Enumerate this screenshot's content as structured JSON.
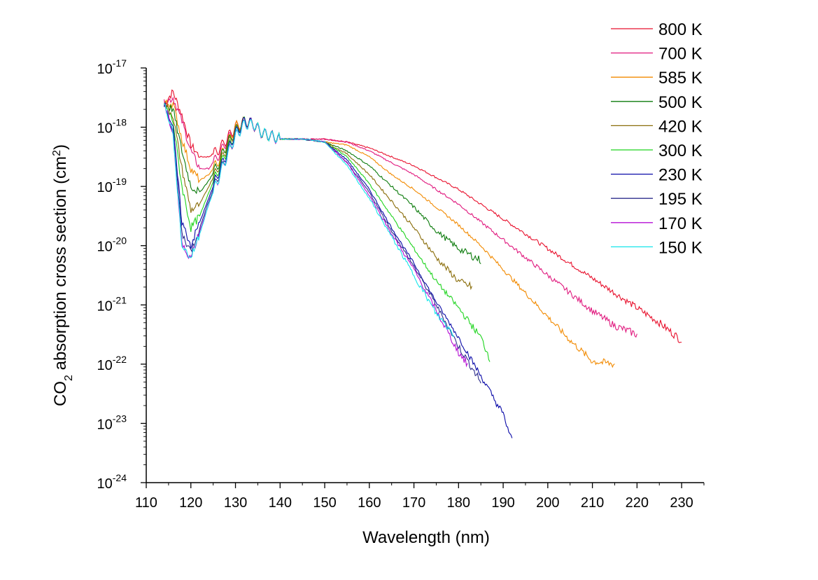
{
  "chart_data": {
    "type": "line",
    "title": "",
    "xlabel": "Wavelength (nm)",
    "ylabel": {
      "prefix": "CO",
      "sub": "2",
      "middle": " absorption cross section (cm",
      "sup": "2",
      "suffix": ")"
    },
    "xlim": [
      110,
      235
    ],
    "ylim_log10": [
      -24,
      -17
    ],
    "y_scale": "log",
    "x_ticks": [
      110,
      120,
      130,
      140,
      150,
      160,
      170,
      180,
      190,
      200,
      210,
      220,
      230
    ],
    "y_ticks": [
      {
        "base": "10",
        "exp": "-17",
        "log10": -17
      },
      {
        "base": "10",
        "exp": "-18",
        "log10": -18
      },
      {
        "base": "10",
        "exp": "-19",
        "log10": -19
      },
      {
        "base": "10",
        "exp": "-20",
        "log10": -20
      },
      {
        "base": "10",
        "exp": "-21",
        "log10": -21
      },
      {
        "base": "10",
        "exp": "-22",
        "log10": -22
      },
      {
        "base": "10",
        "exp": "-23",
        "log10": -23
      },
      {
        "base": "10",
        "exp": "-24",
        "log10": -24
      }
    ],
    "grid": false,
    "legend_position": "top-right",
    "series": [
      {
        "name": "800 K",
        "color": "#e8112d",
        "x": [
          114,
          116,
          118,
          120,
          122,
          124,
          126,
          128,
          130,
          132,
          134,
          136,
          140,
          145,
          150,
          155,
          160,
          165,
          170,
          175,
          180,
          185,
          190,
          195,
          200,
          205,
          210,
          215,
          220,
          225,
          230
        ],
        "log10": [
          -17.6,
          -17.4,
          -17.8,
          -18.3,
          -18.5,
          -18.5,
          -18.4,
          -18.2,
          -18.0,
          -17.9,
          -17.95,
          -18.1,
          -18.2,
          -18.2,
          -18.2,
          -18.25,
          -18.35,
          -18.5,
          -18.65,
          -18.85,
          -19.05,
          -19.3,
          -19.55,
          -19.8,
          -20.05,
          -20.3,
          -20.55,
          -20.8,
          -21.05,
          -21.3,
          -21.6
        ]
      },
      {
        "name": "700 K",
        "color": "#e0197e",
        "x": [
          114,
          116,
          118,
          120,
          122,
          124,
          126,
          128,
          130,
          132,
          134,
          136,
          140,
          145,
          150,
          155,
          160,
          165,
          170,
          175,
          180,
          185,
          190,
          195,
          200,
          205,
          210,
          215,
          220
        ],
        "log10": [
          -17.6,
          -17.5,
          -17.9,
          -18.4,
          -18.7,
          -18.7,
          -18.5,
          -18.25,
          -18.0,
          -17.9,
          -17.95,
          -18.1,
          -18.2,
          -18.2,
          -18.2,
          -18.25,
          -18.4,
          -18.6,
          -18.8,
          -19.05,
          -19.3,
          -19.6,
          -19.9,
          -20.2,
          -20.5,
          -20.8,
          -21.1,
          -21.35,
          -21.5
        ]
      },
      {
        "name": "585 K",
        "color": "#f28a00",
        "x": [
          114,
          116,
          118,
          120,
          122,
          124,
          126,
          128,
          130,
          132,
          134,
          136,
          140,
          145,
          150,
          155,
          160,
          165,
          170,
          175,
          180,
          185,
          190,
          195,
          200,
          205,
          210,
          215
        ],
        "log10": [
          -17.6,
          -17.6,
          -18.2,
          -18.7,
          -18.9,
          -18.8,
          -18.6,
          -18.3,
          -18.0,
          -17.9,
          -17.95,
          -18.1,
          -18.2,
          -18.2,
          -18.25,
          -18.3,
          -18.5,
          -18.8,
          -19.05,
          -19.35,
          -19.65,
          -20.0,
          -20.4,
          -20.8,
          -21.2,
          -21.6,
          -21.95,
          -22.0
        ]
      },
      {
        "name": "500 K",
        "color": "#0c7b0c",
        "x": [
          114,
          116,
          118,
          120,
          122,
          124,
          126,
          128,
          130,
          132,
          134,
          136,
          140,
          145,
          150,
          155,
          160,
          165,
          170,
          175,
          180,
          185
        ],
        "log10": [
          -17.6,
          -17.7,
          -18.4,
          -19.0,
          -19.1,
          -18.9,
          -18.65,
          -18.3,
          -18.05,
          -17.9,
          -17.95,
          -18.1,
          -18.2,
          -18.2,
          -18.25,
          -18.4,
          -18.65,
          -19.0,
          -19.35,
          -19.75,
          -20.05,
          -20.25
        ]
      },
      {
        "name": "420 K",
        "color": "#8a6d0a",
        "x": [
          114,
          116,
          118,
          120,
          122,
          124,
          126,
          128,
          130,
          132,
          134,
          136,
          140,
          145,
          150,
          155,
          160,
          165,
          170,
          175,
          180,
          183
        ],
        "log10": [
          -17.6,
          -17.8,
          -18.7,
          -19.4,
          -19.3,
          -19.0,
          -18.7,
          -18.35,
          -18.05,
          -17.9,
          -17.95,
          -18.1,
          -18.2,
          -18.2,
          -18.25,
          -18.45,
          -18.8,
          -19.25,
          -19.7,
          -20.2,
          -20.6,
          -20.7
        ]
      },
      {
        "name": "300 K",
        "color": "#1ed41e",
        "x": [
          114,
          116,
          118,
          120,
          122,
          124,
          126,
          128,
          130,
          132,
          134,
          136,
          140,
          145,
          150,
          155,
          160,
          165,
          170,
          175,
          180,
          185,
          187
        ],
        "log10": [
          -17.6,
          -17.9,
          -19.0,
          -19.7,
          -19.5,
          -19.1,
          -18.75,
          -18.4,
          -18.1,
          -17.9,
          -17.95,
          -18.1,
          -18.2,
          -18.2,
          -18.25,
          -18.5,
          -18.95,
          -19.5,
          -20.05,
          -20.6,
          -21.05,
          -21.55,
          -21.9
        ]
      },
      {
        "name": "230 K",
        "color": "#0a0aa8",
        "x": [
          114,
          116,
          118,
          120,
          122,
          124,
          126,
          128,
          130,
          132,
          134,
          136,
          140,
          145,
          150,
          155,
          160,
          165,
          170,
          175,
          180,
          185,
          190,
          192
        ],
        "log10": [
          -17.6,
          -18.0,
          -19.6,
          -20.0,
          -19.6,
          -19.2,
          -18.8,
          -18.45,
          -18.1,
          -17.9,
          -17.95,
          -18.1,
          -18.2,
          -18.2,
          -18.25,
          -18.55,
          -19.05,
          -19.7,
          -20.3,
          -20.95,
          -21.55,
          -22.2,
          -22.85,
          -23.3
        ]
      },
      {
        "name": "195 K",
        "color": "#2e2e8c",
        "x": [
          114,
          116,
          118,
          120,
          122,
          124,
          126,
          128,
          130,
          132,
          134,
          136,
          140,
          145,
          150,
          155,
          160,
          165,
          170,
          175,
          180,
          185
        ],
        "log10": [
          -17.6,
          -18.05,
          -19.8,
          -20.1,
          -19.7,
          -19.25,
          -18.85,
          -18.5,
          -18.15,
          -17.95,
          -17.95,
          -18.1,
          -18.2,
          -18.2,
          -18.25,
          -18.6,
          -19.1,
          -19.75,
          -20.35,
          -21.0,
          -21.7,
          -22.3
        ]
      },
      {
        "name": "170 K",
        "color": "#b40fd4",
        "x": [
          114,
          116,
          118,
          120,
          122,
          124,
          126,
          128,
          130,
          132,
          134,
          136,
          140,
          145,
          150,
          155,
          160,
          165,
          170,
          175,
          180,
          182
        ],
        "log10": [
          -17.6,
          -18.1,
          -20.0,
          -20.2,
          -19.75,
          -19.3,
          -18.9,
          -18.5,
          -18.15,
          -17.95,
          -17.95,
          -18.1,
          -18.2,
          -18.2,
          -18.25,
          -18.6,
          -19.15,
          -19.8,
          -20.4,
          -21.1,
          -21.8,
          -22.0
        ]
      },
      {
        "name": "150 K",
        "color": "#14e6ea",
        "x": [
          114,
          116,
          118,
          120,
          122,
          124,
          126,
          128,
          130,
          132,
          134,
          136,
          140,
          145,
          150,
          155,
          160,
          165,
          170,
          175,
          179
        ],
        "log10": [
          -17.6,
          -18.1,
          -20.0,
          -20.2,
          -19.8,
          -19.3,
          -18.9,
          -18.5,
          -18.15,
          -17.95,
          -17.95,
          -18.1,
          -18.2,
          -18.2,
          -18.25,
          -18.65,
          -19.2,
          -19.85,
          -20.5,
          -21.15,
          -21.5
        ]
      }
    ]
  }
}
